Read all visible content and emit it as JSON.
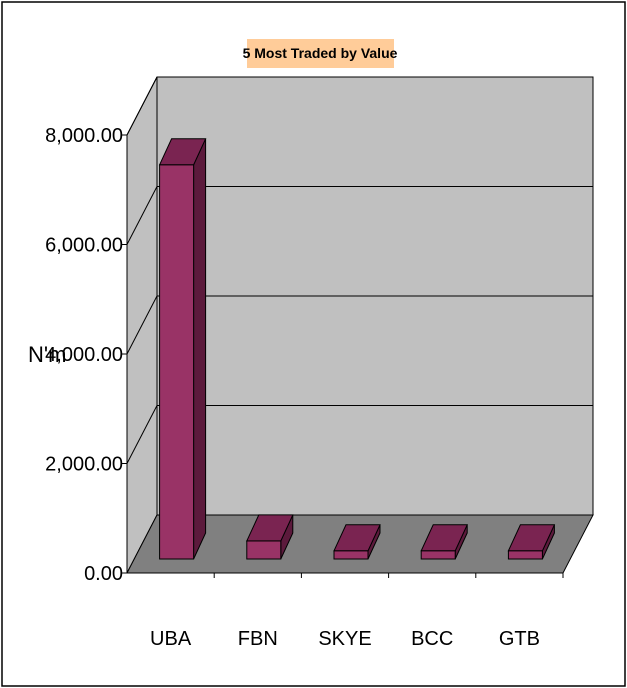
{
  "chart_data": {
    "type": "bar",
    "title": "5 Most Traded by Value",
    "ylabel": "N'm",
    "xlabel": "",
    "categories": [
      "UBA",
      "FBN",
      "SKYE",
      "BCC",
      "GTB"
    ],
    "values": [
      7200,
      330,
      150,
      150,
      150
    ],
    "ylim": [
      0,
      8000
    ],
    "y_ticks": [
      "0.00",
      "2,000.00",
      "4,000.00",
      "6,000.00",
      "8,000.00"
    ],
    "grid": true,
    "legend": "none",
    "colors": {
      "bar_front": "#993366",
      "bar_top": "#7a2451",
      "bar_side": "#5c1a3c",
      "wall": "#c0c0c0",
      "floor": "#808080",
      "title_bg": "#ffcc99"
    }
  }
}
